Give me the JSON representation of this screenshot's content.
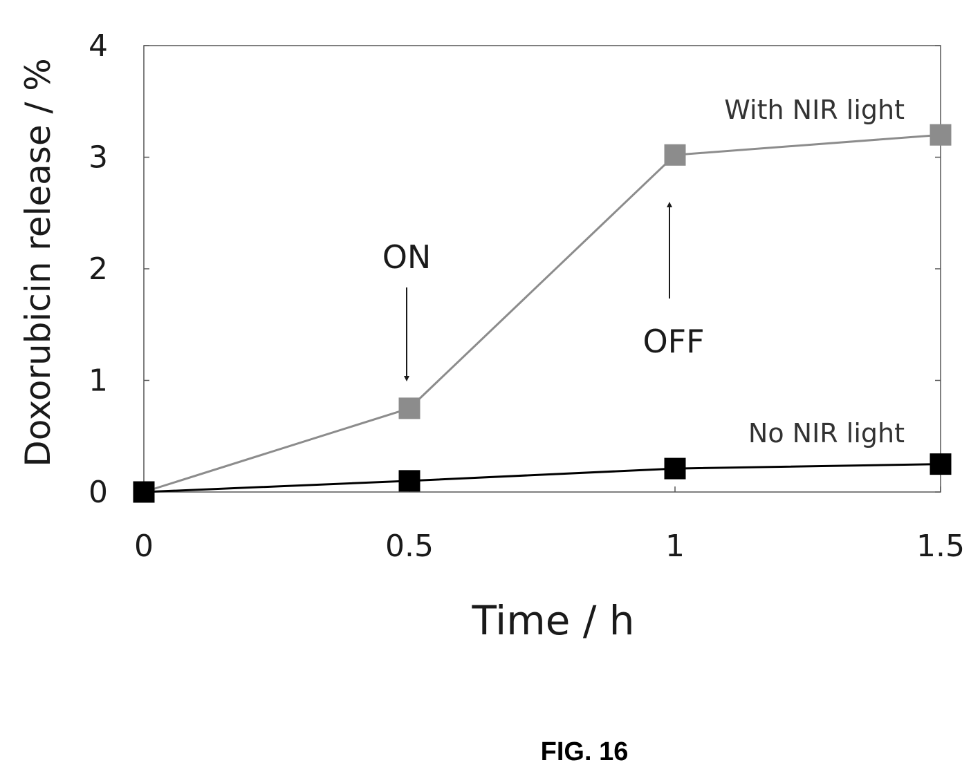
{
  "chart_data": {
    "type": "line",
    "title": "",
    "xlabel": "Time / h",
    "ylabel": "Doxorubicin release / %",
    "xlim": [
      0,
      1.5
    ],
    "ylim": [
      0,
      4
    ],
    "x_ticks": [
      "0",
      "0.5",
      "1",
      "1.5"
    ],
    "y_ticks": [
      "0",
      "1",
      "2",
      "3",
      "4"
    ],
    "grid": false,
    "x": [
      0,
      0.5,
      1,
      1.5
    ],
    "series": [
      {
        "name": "With NIR light",
        "values": [
          0,
          0.75,
          3.02,
          3.2
        ],
        "color": "#8c8c8c",
        "marker": "square"
      },
      {
        "name": "No NIR light",
        "values": [
          0,
          0.1,
          0.21,
          0.25
        ],
        "color": "#000000",
        "marker": "square"
      }
    ],
    "annotations": [
      {
        "text": "ON",
        "x": 0.5,
        "arrow": "down"
      },
      {
        "text": "OFF",
        "x": 1,
        "arrow": "up"
      }
    ]
  },
  "figure_caption": "FIG. 16"
}
